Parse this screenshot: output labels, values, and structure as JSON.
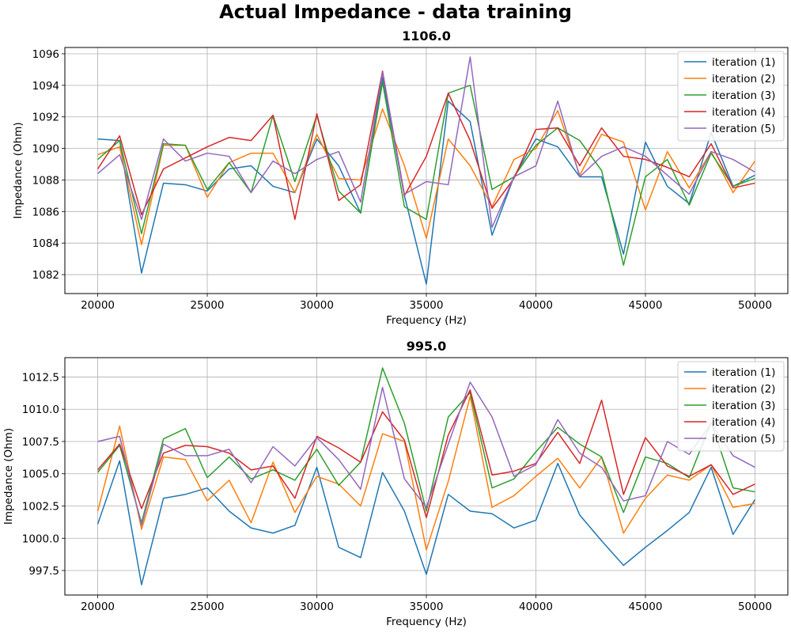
{
  "figure": {
    "title": "Actual Impedance - data training"
  },
  "chart_data": [
    {
      "type": "line",
      "title": "1106.0",
      "xlabel": "Frequency (Hz)",
      "ylabel": "Impedance (Ohm)",
      "xlim": [
        18500,
        51500
      ],
      "ylim": [
        1080.8,
        1096.4
      ],
      "xticks": [
        20000,
        25000,
        30000,
        35000,
        40000,
        45000,
        50000
      ],
      "xtick_labels": [
        "20000",
        "25000",
        "30000",
        "35000",
        "40000",
        "45000",
        "50000"
      ],
      "yticks": [
        1082,
        1084,
        1086,
        1088,
        1090,
        1092,
        1094,
        1096
      ],
      "ytick_labels": [
        "1082",
        "1084",
        "1086",
        "1088",
        "1090",
        "1092",
        "1094",
        "1096"
      ],
      "grid": true,
      "legend": "upper right",
      "x": [
        20000,
        21000,
        22000,
        23000,
        24000,
        25000,
        26000,
        27000,
        28000,
        29000,
        30000,
        31000,
        32000,
        33000,
        34000,
        35000,
        36000,
        37000,
        38000,
        39000,
        40000,
        41000,
        42000,
        43000,
        44000,
        45000,
        46000,
        47000,
        48000,
        49000,
        50000
      ],
      "series": [
        {
          "name": "iteration (1)",
          "color": "#1f77b4",
          "values": [
            1090.6,
            1090.5,
            1082.1,
            1087.8,
            1087.7,
            1087.3,
            1088.7,
            1088.9,
            1087.6,
            1087.2,
            1090.6,
            1088.9,
            1085.9,
            1094.5,
            1087.0,
            1081.4,
            1093.0,
            1091.7,
            1084.5,
            1088.2,
            1090.6,
            1090.1,
            1088.2,
            1088.2,
            1083.3,
            1090.4,
            1087.6,
            1086.5,
            1091.0,
            1087.6,
            1088.3
          ]
        },
        {
          "name": "iteration (2)",
          "color": "#ff7f0e",
          "values": [
            1089.6,
            1090.1,
            1083.9,
            1090.2,
            1090.2,
            1086.9,
            1089.1,
            1089.7,
            1089.7,
            1087.2,
            1090.9,
            1088.1,
            1088.0,
            1092.5,
            1088.9,
            1084.3,
            1090.6,
            1088.9,
            1086.3,
            1089.3,
            1090.0,
            1092.4,
            1088.3,
            1090.9,
            1090.4,
            1086.1,
            1089.8,
            1087.5,
            1089.8,
            1087.2,
            1089.2
          ]
        },
        {
          "name": "iteration (3)",
          "color": "#2ca02c",
          "values": [
            1089.3,
            1090.5,
            1084.6,
            1090.3,
            1090.2,
            1087.4,
            1089.1,
            1087.2,
            1092.1,
            1087.9,
            1092.1,
            1087.3,
            1085.9,
            1094.2,
            1086.3,
            1085.5,
            1093.5,
            1094.0,
            1087.4,
            1088.2,
            1090.2,
            1091.3,
            1090.5,
            1088.6,
            1082.6,
            1088.2,
            1089.3,
            1086.4,
            1089.7,
            1087.6,
            1088.1
          ]
        },
        {
          "name": "iteration (4)",
          "color": "#d62728",
          "values": [
            1088.7,
            1090.8,
            1085.8,
            1088.7,
            1089.4,
            1090.1,
            1090.7,
            1090.5,
            1092.1,
            1085.5,
            1092.2,
            1086.7,
            1087.7,
            1094.9,
            1087.0,
            1089.5,
            1093.5,
            1090.5,
            1086.2,
            1088.1,
            1091.2,
            1091.3,
            1088.9,
            1091.3,
            1089.5,
            1089.3,
            1088.8,
            1088.2,
            1090.3,
            1087.5,
            1087.8
          ]
        },
        {
          "name": "iteration (5)",
          "color": "#9467bd",
          "values": [
            1088.4,
            1089.6,
            1085.5,
            1090.6,
            1089.2,
            1089.7,
            1089.5,
            1087.2,
            1089.2,
            1088.4,
            1089.3,
            1089.8,
            1086.6,
            1094.8,
            1087.1,
            1087.9,
            1087.7,
            1095.8,
            1085.0,
            1088.2,
            1088.9,
            1093.0,
            1088.2,
            1089.5,
            1090.1,
            1089.5,
            1088.3,
            1087.1,
            1089.8,
            1089.3,
            1088.5
          ]
        }
      ]
    },
    {
      "type": "line",
      "title": "995.0",
      "xlabel": "Frequency (Hz)",
      "ylabel": "Impedance (Ohm)",
      "xlim": [
        18500,
        51500
      ],
      "ylim": [
        995.6,
        1014.0
      ],
      "xticks": [
        20000,
        25000,
        30000,
        35000,
        40000,
        45000,
        50000
      ],
      "xtick_labels": [
        "20000",
        "25000",
        "30000",
        "35000",
        "40000",
        "45000",
        "50000"
      ],
      "yticks": [
        997.5,
        1000.0,
        1002.5,
        1005.0,
        1007.5,
        1010.0,
        1012.5
      ],
      "ytick_labels": [
        "997.5",
        "1000.0",
        "1002.5",
        "1005.0",
        "1007.5",
        "1010.0",
        "1012.5"
      ],
      "grid": true,
      "legend": "upper right",
      "x": [
        20000,
        21000,
        22000,
        23000,
        24000,
        25000,
        26000,
        27000,
        28000,
        29000,
        30000,
        31000,
        32000,
        33000,
        34000,
        35000,
        36000,
        37000,
        38000,
        39000,
        40000,
        41000,
        42000,
        43000,
        44000,
        45000,
        46000,
        47000,
        48000,
        49000,
        50000
      ],
      "series": [
        {
          "name": "iteration (1)",
          "color": "#1f77b4",
          "values": [
            1001.1,
            1006.0,
            996.4,
            1003.1,
            1003.4,
            1003.9,
            1002.1,
            1000.8,
            1000.4,
            1001.0,
            1005.5,
            999.3,
            998.5,
            1005.1,
            1002.1,
            997.2,
            1003.4,
            1002.1,
            1001.9,
            1000.8,
            1001.4,
            1005.8,
            1001.8,
            999.8,
            997.9,
            999.3,
            1000.6,
            1002.0,
            1005.5,
            1000.3,
            1003.0
          ]
        },
        {
          "name": "iteration (2)",
          "color": "#ff7f0e",
          "values": [
            1002.1,
            1008.7,
            1000.7,
            1006.3,
            1006.1,
            1002.9,
            1004.5,
            1001.2,
            1005.9,
            1002.0,
            1004.8,
            1004.2,
            1002.5,
            1008.1,
            1007.5,
            999.1,
            1004.4,
            1011.0,
            1002.4,
            1003.3,
            1004.8,
            1006.2,
            1003.9,
            1006.3,
            1000.4,
            1003.1,
            1004.9,
            1004.5,
            1005.7,
            1002.4,
            1002.7
          ]
        },
        {
          "name": "iteration (3)",
          "color": "#2ca02c",
          "values": [
            1005.1,
            1007.2,
            1001.2,
            1007.7,
            1008.5,
            1004.7,
            1006.3,
            1004.6,
            1005.3,
            1004.5,
            1006.9,
            1004.1,
            1005.9,
            1013.2,
            1008.9,
            1002.1,
            1009.4,
            1011.3,
            1003.9,
            1004.6,
            1006.7,
            1008.6,
            1007.3,
            1006.3,
            1002.0,
            1006.3,
            1005.8,
            1004.7,
            1009.0,
            1003.9,
            1003.6
          ]
        },
        {
          "name": "iteration (4)",
          "color": "#d62728",
          "values": [
            1005.3,
            1007.3,
            1002.3,
            1006.6,
            1007.2,
            1007.1,
            1006.6,
            1005.3,
            1005.6,
            1003.1,
            1007.9,
            1007.0,
            1005.9,
            1009.8,
            1007.6,
            1001.6,
            1008.0,
            1011.5,
            1004.9,
            1005.2,
            1005.8,
            1008.2,
            1005.8,
            1010.7,
            1003.4,
            1007.8,
            1005.6,
            1004.8,
            1005.7,
            1003.4,
            1004.2
          ]
        },
        {
          "name": "iteration (5)",
          "color": "#9467bd",
          "values": [
            1007.5,
            1007.9,
            1001.0,
            1007.3,
            1006.4,
            1006.4,
            1006.9,
            1004.3,
            1007.1,
            1005.6,
            1007.8,
            1006.1,
            1003.8,
            1011.7,
            1004.6,
            1002.4,
            1007.3,
            1012.1,
            1009.4,
            1004.8,
            1005.7,
            1009.2,
            1006.6,
            1005.5,
            1002.9,
            1003.3,
            1007.5,
            1006.5,
            1008.9,
            1006.4,
            1005.5
          ]
        }
      ]
    }
  ]
}
